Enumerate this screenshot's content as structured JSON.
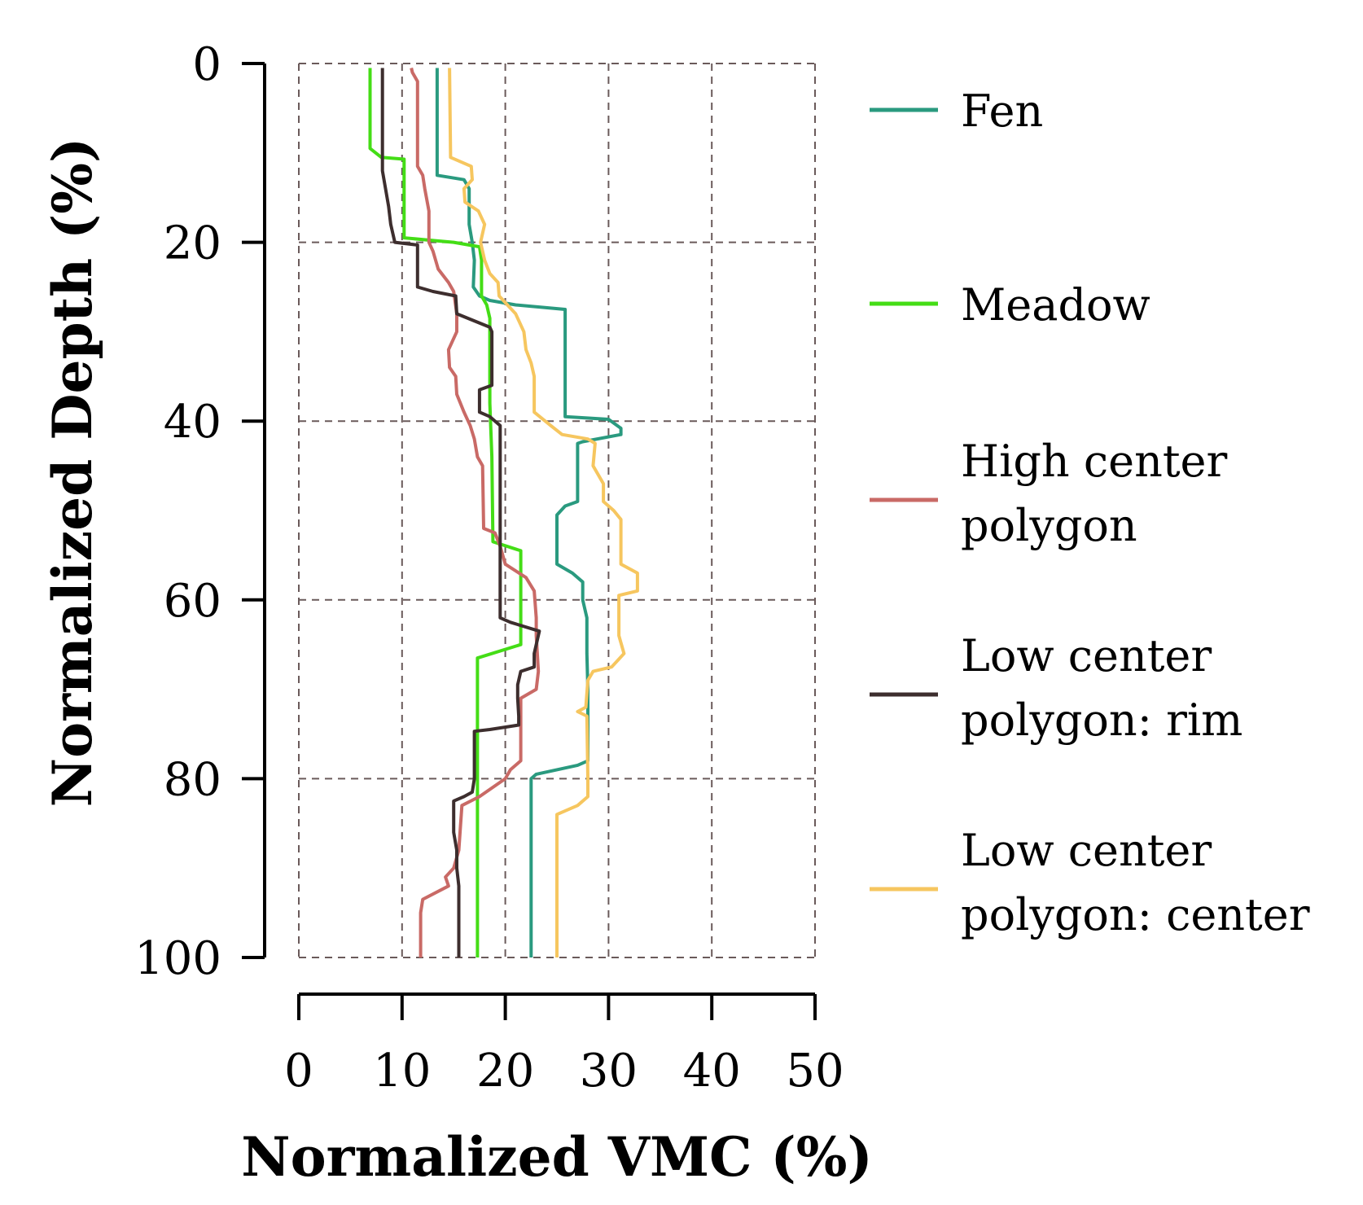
{
  "chart_data": {
    "type": "line",
    "title": "",
    "xlabel": "Normalized VMC (%)",
    "ylabel": "Normalized Depth (%)",
    "xlim": [
      0,
      50
    ],
    "ylim": [
      0,
      100
    ],
    "y_inverted": true,
    "x_ticks": [
      0,
      10,
      20,
      30,
      40,
      50
    ],
    "y_ticks": [
      0,
      20,
      40,
      60,
      80,
      100
    ],
    "grid": "dashed",
    "legend_position": "right",
    "series": [
      {
        "name": "Fen",
        "color": "#2a9a7f",
        "points": [
          [
            13.4,
            0.5
          ],
          [
            13.4,
            12.5
          ],
          [
            16,
            13
          ],
          [
            16.5,
            14
          ],
          [
            16.5,
            18
          ],
          [
            16.8,
            20
          ],
          [
            17,
            22
          ],
          [
            16.9,
            25
          ],
          [
            17.5,
            26
          ],
          [
            18.5,
            26.5
          ],
          [
            21,
            27
          ],
          [
            25.8,
            27.5
          ],
          [
            25.8,
            39.5
          ],
          [
            30,
            39.8
          ],
          [
            31.2,
            40.8
          ],
          [
            31.2,
            41.5
          ],
          [
            27.5,
            42.3
          ],
          [
            27,
            42.5
          ],
          [
            27,
            49
          ],
          [
            25.8,
            49.5
          ],
          [
            25,
            50.5
          ],
          [
            25,
            56
          ],
          [
            26.5,
            57
          ],
          [
            27.5,
            58
          ],
          [
            27.5,
            60
          ],
          [
            27.9,
            62
          ],
          [
            27.9,
            66
          ],
          [
            28,
            70
          ],
          [
            28,
            78
          ],
          [
            27,
            78.5
          ],
          [
            23,
            79.5
          ],
          [
            22.5,
            80
          ],
          [
            22.5,
            100
          ]
        ]
      },
      {
        "name": "Meadow",
        "color": "#44dd16",
        "points": [
          [
            6.9,
            0.5
          ],
          [
            6.9,
            9.5
          ],
          [
            8,
            10.5
          ],
          [
            10.2,
            10.7
          ],
          [
            10.2,
            19.5
          ],
          [
            13,
            19.8
          ],
          [
            15,
            20
          ],
          [
            17.5,
            20.5
          ],
          [
            17.7,
            22
          ],
          [
            17.7,
            26
          ],
          [
            18.2,
            27
          ],
          [
            18.5,
            28.5
          ],
          [
            18.5,
            38
          ],
          [
            18.7,
            44
          ],
          [
            18.8,
            53.5
          ],
          [
            21.5,
            54.5
          ],
          [
            21.5,
            65
          ],
          [
            17.3,
            66.5
          ],
          [
            17.3,
            78
          ],
          [
            17.3,
            100
          ]
        ]
      },
      {
        "name": "High center polygon",
        "color": "#c96a66",
        "points": [
          [
            10.9,
            0.5
          ],
          [
            11,
            1
          ],
          [
            11.5,
            2
          ],
          [
            11.5,
            11.5
          ],
          [
            12,
            12.5
          ],
          [
            12.2,
            14
          ],
          [
            12.6,
            16.5
          ],
          [
            12.6,
            20
          ],
          [
            13,
            21
          ],
          [
            13.5,
            23
          ],
          [
            14.5,
            24.5
          ],
          [
            15,
            25.5
          ],
          [
            15.3,
            28
          ],
          [
            15.3,
            30
          ],
          [
            14.5,
            32
          ],
          [
            14.6,
            34
          ],
          [
            15.2,
            35
          ],
          [
            15.3,
            37
          ],
          [
            16,
            39
          ],
          [
            16.6,
            40.5
          ],
          [
            17,
            42
          ],
          [
            17.3,
            44
          ],
          [
            17.8,
            45
          ],
          [
            17.9,
            52
          ],
          [
            19,
            52.5
          ],
          [
            19.5,
            54
          ],
          [
            20,
            56
          ],
          [
            22,
            57.5
          ],
          [
            22.8,
            59
          ],
          [
            23,
            62
          ],
          [
            23,
            64
          ],
          [
            23.2,
            68
          ],
          [
            23,
            70
          ],
          [
            21.5,
            71
          ],
          [
            21.5,
            78
          ],
          [
            20.5,
            79
          ],
          [
            20,
            80
          ],
          [
            17.5,
            82
          ],
          [
            15.8,
            83
          ],
          [
            15.5,
            88
          ],
          [
            15,
            90
          ],
          [
            14.2,
            91
          ],
          [
            14.5,
            92
          ],
          [
            12,
            93.5
          ],
          [
            11.8,
            95
          ],
          [
            11.8,
            100
          ]
        ]
      },
      {
        "name": "Low center polygon: rim",
        "color": "#3d2e2e",
        "points": [
          [
            8.1,
            0.5
          ],
          [
            8.1,
            12
          ],
          [
            8.4,
            14
          ],
          [
            8.7,
            16
          ],
          [
            8.9,
            18
          ],
          [
            9.3,
            20
          ],
          [
            11.5,
            20.3
          ],
          [
            11.5,
            25
          ],
          [
            13,
            25.5
          ],
          [
            15.2,
            26
          ],
          [
            15.3,
            28
          ],
          [
            18.5,
            29.5
          ],
          [
            18.7,
            30
          ],
          [
            18.7,
            36
          ],
          [
            17.5,
            36.5
          ],
          [
            17.5,
            39
          ],
          [
            18.5,
            39.5
          ],
          [
            19.5,
            40.5
          ],
          [
            19.5,
            52
          ],
          [
            19.5,
            60
          ],
          [
            19.5,
            62
          ],
          [
            20.5,
            62.5
          ],
          [
            23.3,
            63.5
          ],
          [
            22.8,
            66
          ],
          [
            22.8,
            67.5
          ],
          [
            21.5,
            68
          ],
          [
            21.2,
            69.5
          ],
          [
            21.2,
            71
          ],
          [
            21.3,
            73
          ],
          [
            21.3,
            74
          ],
          [
            18.5,
            74.5
          ],
          [
            17,
            74.7
          ],
          [
            17,
            80
          ],
          [
            16.8,
            81.5
          ],
          [
            16,
            82
          ],
          [
            15,
            82.5
          ],
          [
            15,
            86
          ],
          [
            15.3,
            88
          ],
          [
            15.3,
            90
          ],
          [
            15.5,
            92
          ],
          [
            15.5,
            100
          ]
        ]
      },
      {
        "name": "Low center polygon: center",
        "color": "#f6c65f",
        "points": [
          [
            14.6,
            0.5
          ],
          [
            14.7,
            10.5
          ],
          [
            16.7,
            11.5
          ],
          [
            16.8,
            13
          ],
          [
            16,
            14
          ],
          [
            16.1,
            15.5
          ],
          [
            17.4,
            16.5
          ],
          [
            18,
            18
          ],
          [
            17.6,
            20
          ],
          [
            18,
            22
          ],
          [
            18.5,
            23.5
          ],
          [
            19.3,
            24.5
          ],
          [
            19.4,
            26
          ],
          [
            21,
            28
          ],
          [
            21.8,
            30
          ],
          [
            22,
            32
          ],
          [
            22.5,
            33.5
          ],
          [
            22.8,
            35
          ],
          [
            22.8,
            39
          ],
          [
            24.4,
            40.5
          ],
          [
            25.5,
            41.5
          ],
          [
            28,
            42
          ],
          [
            28.7,
            42.5
          ],
          [
            28.5,
            45
          ],
          [
            29.5,
            47
          ],
          [
            29.5,
            49
          ],
          [
            30.5,
            50
          ],
          [
            31.2,
            51
          ],
          [
            31.2,
            56
          ],
          [
            32.8,
            57
          ],
          [
            32.8,
            59
          ],
          [
            31,
            59.5
          ],
          [
            31,
            64
          ],
          [
            31.5,
            66
          ],
          [
            30.3,
            67.5
          ],
          [
            28.5,
            68
          ],
          [
            28,
            69
          ],
          [
            27.8,
            72
          ],
          [
            27,
            72.5
          ],
          [
            27.9,
            73
          ],
          [
            28,
            80
          ],
          [
            28,
            82
          ],
          [
            27,
            83
          ],
          [
            25,
            84
          ],
          [
            25,
            100
          ]
        ]
      }
    ],
    "legend": {
      "fen": "Fen",
      "meadow": "Meadow",
      "hcp_line1": "High center",
      "hcp_line2": "polygon",
      "rim_line1": "Low center",
      "rim_line2": "polygon: rim",
      "center_line1": "Low center",
      "center_line2": "polygon: center"
    }
  }
}
